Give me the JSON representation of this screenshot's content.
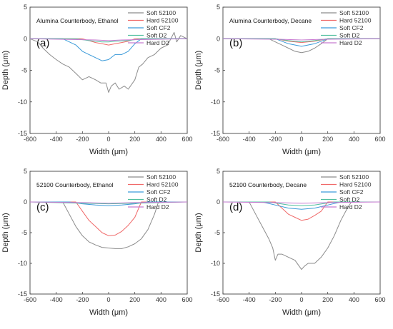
{
  "chart_data": [
    {
      "type": "line",
      "panel_label": "(a)",
      "title": "Alumina Counterbody, Ethanol",
      "xlabel": "Width (μm)",
      "ylabel": "Depth (μm)",
      "xlim": [
        -600,
        600
      ],
      "ylim": [
        -15,
        5
      ],
      "xticks": [
        "-600",
        "-400",
        "-200",
        "0",
        "200",
        "400",
        "600"
      ],
      "yticks": [
        "5",
        "0",
        "-5",
        "-10",
        "-15"
      ],
      "legend_position": "top-right",
      "series": [
        {
          "name": "Soft 52100",
          "x": [
            -600,
            -540,
            -500,
            -450,
            -400,
            -350,
            -300,
            -250,
            -200,
            -150,
            -100,
            -60,
            -20,
            0,
            20,
            50,
            80,
            120,
            150,
            200,
            230,
            260,
            300,
            350,
            400,
            450,
            500,
            520,
            550,
            600
          ],
          "y": [
            0,
            -0.5,
            -1.5,
            -2.5,
            -3.3,
            -4,
            -4.5,
            -5.5,
            -6.5,
            -6,
            -6.5,
            -7,
            -7,
            -8.5,
            -7.5,
            -7,
            -8,
            -7.5,
            -8,
            -6.5,
            -4.5,
            -4,
            -3,
            -2.5,
            -1.5,
            -1,
            1,
            -0.5,
            0.5,
            0
          ]
        },
        {
          "name": "Hard 52100",
          "x": [
            -600,
            -200,
            -150,
            -100,
            -50,
            0,
            50,
            100,
            150,
            200,
            600
          ],
          "y": [
            0,
            0,
            -0.3,
            -0.6,
            -0.8,
            -1,
            -0.8,
            -0.6,
            -0.4,
            0,
            0
          ]
        },
        {
          "name": "Soft CF2",
          "x": [
            -600,
            -350,
            -300,
            -250,
            -200,
            -150,
            -100,
            -50,
            0,
            50,
            100,
            150,
            200,
            250,
            600
          ],
          "y": [
            0,
            0,
            -0.5,
            -1,
            -2,
            -2.5,
            -3,
            -3.5,
            -3.3,
            -2.5,
            -2.5,
            -2,
            -0.8,
            0,
            0
          ]
        },
        {
          "name": "Soft D2",
          "x": [
            -600,
            -250,
            -150,
            -50,
            0,
            50,
            150,
            250,
            600
          ],
          "y": [
            0,
            0,
            -0.3,
            -0.5,
            -0.5,
            -0.4,
            -0.3,
            0,
            0
          ]
        },
        {
          "name": "Hard D2",
          "x": [
            -600,
            -100,
            0,
            100,
            600
          ],
          "y": [
            0,
            -0.2,
            -0.3,
            -0.2,
            0
          ]
        }
      ]
    },
    {
      "type": "line",
      "panel_label": "(b)",
      "title": "Alumina Counterbody, Decane",
      "xlabel": "Width (μm)",
      "ylabel": "Depth (μm)",
      "xlim": [
        -600,
        600
      ],
      "ylim": [
        -15,
        5
      ],
      "xticks": [
        "-600",
        "-400",
        "-200",
        "0",
        "200",
        "400",
        "600"
      ],
      "yticks": [
        "5",
        "0",
        "-5",
        "-10",
        "-15"
      ],
      "legend_position": "top-right",
      "series": [
        {
          "name": "Soft 52100",
          "x": [
            -600,
            -250,
            -200,
            -150,
            -100,
            -50,
            0,
            50,
            100,
            150,
            200,
            600
          ],
          "y": [
            0,
            0,
            -0.5,
            -1,
            -1.5,
            -2,
            -2.2,
            -2,
            -1.5,
            -0.8,
            0,
            0
          ]
        },
        {
          "name": "Hard 52100",
          "x": [
            -600,
            -200,
            -100,
            0,
            100,
            200,
            600
          ],
          "y": [
            0,
            0,
            -0.4,
            -0.6,
            -0.4,
            0,
            0
          ]
        },
        {
          "name": "Soft CF2",
          "x": [
            -600,
            -200,
            -100,
            0,
            100,
            200,
            600
          ],
          "y": [
            0,
            0,
            -0.8,
            -1.2,
            -0.8,
            0,
            0
          ]
        },
        {
          "name": "Soft D2",
          "x": [
            -600,
            -200,
            -100,
            0,
            100,
            200,
            600
          ],
          "y": [
            0,
            0,
            -0.3,
            -0.5,
            -0.3,
            0,
            0
          ]
        },
        {
          "name": "Hard D2",
          "x": [
            -600,
            -150,
            0,
            150,
            600
          ],
          "y": [
            0,
            -0.1,
            -0.2,
            -0.1,
            0
          ]
        }
      ]
    },
    {
      "type": "line",
      "panel_label": "(c)",
      "title": "52100 Counterbody, Ethanol",
      "xlabel": "Width (μm)",
      "ylabel": "Depth (μm)",
      "xlim": [
        -600,
        600
      ],
      "ylim": [
        -15,
        5
      ],
      "xticks": [
        "-600",
        "-400",
        "-200",
        "0",
        "200",
        "400",
        "600"
      ],
      "yticks": [
        "5",
        "0",
        "-5",
        "-10",
        "-15"
      ],
      "legend_position": "top-right",
      "series": [
        {
          "name": "Soft 52100",
          "x": [
            -600,
            -350,
            -300,
            -250,
            -200,
            -150,
            -100,
            -50,
            0,
            50,
            100,
            150,
            200,
            250,
            300,
            350,
            380,
            600
          ],
          "y": [
            0,
            0,
            -2,
            -4,
            -5.5,
            -6.5,
            -7,
            -7.4,
            -7.5,
            -7.6,
            -7.6,
            -7.3,
            -6.8,
            -6,
            -4.5,
            -2,
            0,
            0
          ]
        },
        {
          "name": "Hard 52100",
          "x": [
            -600,
            -250,
            -200,
            -150,
            -100,
            -50,
            0,
            50,
            100,
            150,
            200,
            250,
            600
          ],
          "y": [
            0,
            0,
            -1.5,
            -3,
            -4,
            -5,
            -5.5,
            -5.4,
            -4.8,
            -3.8,
            -2.5,
            0,
            0
          ]
        },
        {
          "name": "Soft CF2",
          "x": [
            -600,
            -300,
            -200,
            -100,
            0,
            100,
            200,
            300,
            600
          ],
          "y": [
            0,
            0,
            -0.3,
            -0.5,
            -0.6,
            -0.5,
            -0.3,
            0,
            0
          ]
        },
        {
          "name": "Soft D2",
          "x": [
            -600,
            -200,
            0,
            200,
            600
          ],
          "y": [
            0,
            -0.2,
            -0.3,
            -0.2,
            0
          ]
        },
        {
          "name": "Hard D2",
          "x": [
            -600,
            -200,
            0,
            200,
            600
          ],
          "y": [
            0,
            -0.1,
            -0.2,
            -0.1,
            0
          ]
        }
      ]
    },
    {
      "type": "line",
      "panel_label": "(d)",
      "title": "52100 Counterbody, Decane",
      "xlabel": "Width (μm)",
      "ylabel": "Depth (μm)",
      "xlim": [
        -600,
        600
      ],
      "ylim": [
        -15,
        5
      ],
      "xticks": [
        "-600",
        "-400",
        "-200",
        "0",
        "200",
        "400",
        "600"
      ],
      "yticks": [
        "5",
        "0",
        "-5",
        "-10",
        "-15"
      ],
      "legend_position": "top-right",
      "series": [
        {
          "name": "Soft 52100",
          "x": [
            -600,
            -400,
            -350,
            -300,
            -250,
            -220,
            -200,
            -180,
            -150,
            -100,
            -50,
            0,
            20,
            50,
            100,
            150,
            200,
            250,
            300,
            350,
            380,
            600
          ],
          "y": [
            0,
            0,
            -2,
            -4,
            -6,
            -7.5,
            -9.5,
            -8.5,
            -8.5,
            -9,
            -9.5,
            -11,
            -10.5,
            -10,
            -10,
            -9,
            -7.5,
            -5.5,
            -3,
            -1,
            0,
            0
          ]
        },
        {
          "name": "Hard 52100",
          "x": [
            -600,
            -200,
            -150,
            -100,
            -50,
            0,
            50,
            100,
            150,
            200,
            600
          ],
          "y": [
            0,
            0,
            -1,
            -2,
            -2.5,
            -3,
            -2.8,
            -2.2,
            -1.5,
            0,
            0
          ]
        },
        {
          "name": "Soft CF2",
          "x": [
            -600,
            -300,
            -200,
            -100,
            0,
            100,
            200,
            300,
            600
          ],
          "y": [
            0,
            0,
            -0.5,
            -1,
            -1.2,
            -1,
            -0.5,
            0,
            0
          ]
        },
        {
          "name": "Soft D2",
          "x": [
            -600,
            -250,
            -100,
            0,
            100,
            250,
            600
          ],
          "y": [
            0,
            0,
            -0.5,
            -0.6,
            -0.5,
            0,
            0
          ]
        },
        {
          "name": "Hard D2",
          "x": [
            -600,
            -200,
            0,
            200,
            600
          ],
          "y": [
            0,
            -0.1,
            -0.2,
            -0.1,
            0
          ]
        }
      ]
    }
  ],
  "colors": {
    "Soft 52100": "#8c8c8c",
    "Hard 52100": "#f06a6a",
    "Soft CF2": "#3a9ad9",
    "Soft D2": "#52c0a0",
    "Hard D2": "#c77ad1"
  }
}
